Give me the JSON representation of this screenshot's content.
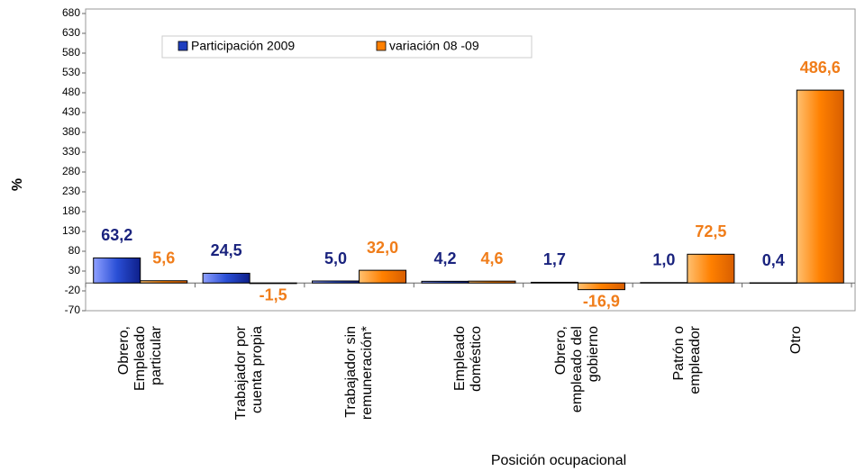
{
  "chart_data": {
    "type": "bar",
    "categories": [
      "Obrero, Empleado particular",
      "Trabajador por cuenta propia",
      "Trabajador sin remuneración*",
      "Empleado doméstico",
      "Obrero, empleado del gobierno",
      "Patrón o empleador",
      "Otro"
    ],
    "series": [
      {
        "name": "Participación 2009",
        "color": "#1f3fbf",
        "label_color": "#1a237e",
        "values": [
          63.2,
          24.5,
          5.0,
          4.2,
          1.7,
          1.0,
          0.4
        ],
        "value_labels": [
          "63,2",
          "24,5",
          "5,0",
          "4,2",
          "1,7",
          "1,0",
          "0,4"
        ]
      },
      {
        "name": "variación 08 -09",
        "color": "#ff8000",
        "label_color": "#f07d1a",
        "values": [
          5.6,
          -1.5,
          32.0,
          4.6,
          -16.9,
          72.5,
          486.6
        ],
        "value_labels": [
          "5,6",
          "-1,5",
          "32,0",
          "4,6",
          "-16,9",
          "72,5",
          "486,6"
        ]
      }
    ],
    "ylabel": "%",
    "xlabel": "Posición ocupacional",
    "ylim": [
      -70,
      680
    ],
    "yticks": [
      -70,
      -20,
      30,
      80,
      130,
      180,
      230,
      280,
      330,
      380,
      430,
      480,
      530,
      580,
      630,
      680
    ],
    "legend": "top"
  }
}
